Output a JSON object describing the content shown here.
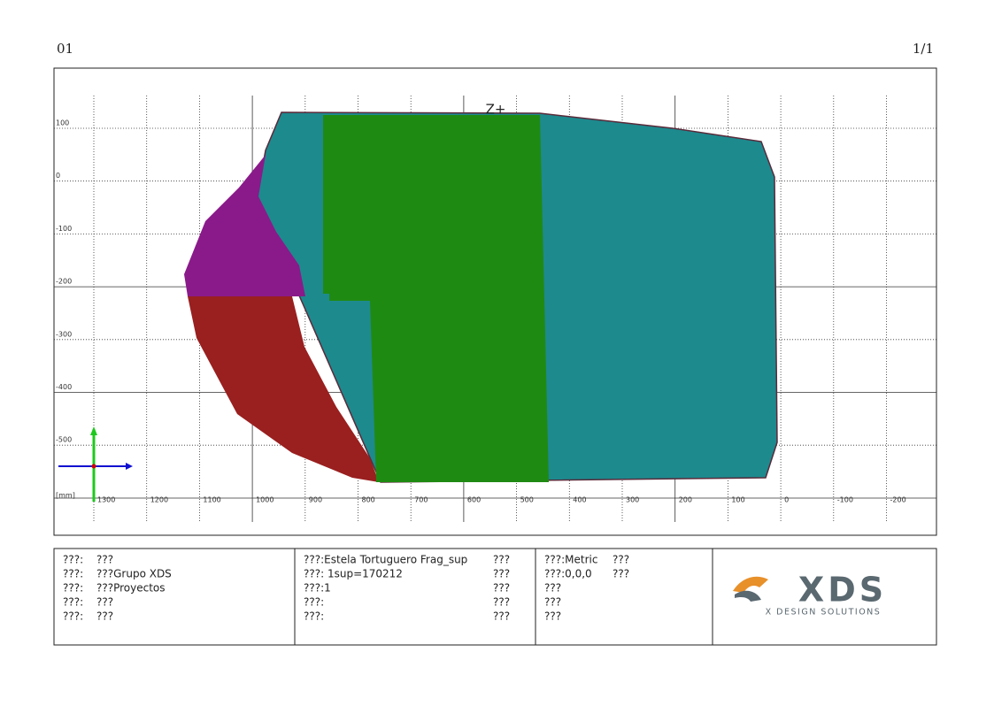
{
  "header": {
    "sheet": "01",
    "page": "1/1"
  },
  "view": {
    "axis_label": "Z+",
    "unit": "[mm]",
    "y_labels": [
      100,
      0,
      -100,
      -200,
      -300,
      -400,
      -500
    ],
    "x_labels": [
      1300,
      1200,
      1100,
      1000,
      900,
      800,
      700,
      600,
      500,
      400,
      300,
      200,
      100,
      0,
      -100,
      -200
    ]
  },
  "title_block": {
    "columns": [
      [
        [
          "???:",
          "???"
        ],
        [
          "???:",
          "???Grupo XDS"
        ],
        [
          "???:",
          "???Proyectos"
        ],
        [
          "???:",
          "???"
        ],
        [
          "???:",
          "???"
        ]
      ],
      [
        [
          "???:Estela Tortuguero Frag_sup",
          "???"
        ],
        [
          "???: 1sup=170212",
          "???"
        ],
        [
          "???:1",
          "???"
        ],
        [
          "???:",
          "???"
        ],
        [
          "???:",
          "???"
        ]
      ],
      [
        [
          "???:Metric",
          "???"
        ],
        [
          "???:0,0,0",
          "???"
        ],
        [
          "???"
        ],
        [
          "???"
        ],
        [
          "???"
        ]
      ]
    ],
    "logo": {
      "name": "XDS",
      "tagline": "X DESIGN SOLUTIONS"
    }
  }
}
